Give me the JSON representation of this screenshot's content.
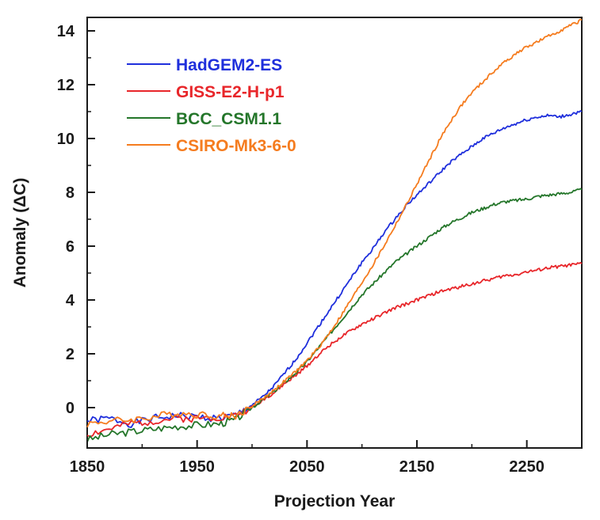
{
  "chart_data": {
    "type": "line",
    "xlabel": "Projection Year",
    "ylabel": "Anomaly (ΔC)",
    "xlim": [
      1850,
      2300
    ],
    "ylim": [
      -1.5,
      14.5
    ],
    "xticks": [
      1850,
      1950,
      2050,
      2150,
      2250
    ],
    "yticks": [
      0,
      2,
      4,
      6,
      8,
      10,
      12,
      14
    ],
    "grid": false,
    "legend_position": "top-left",
    "series": [
      {
        "name": "HadGEM2-ES",
        "color": "#1f2fdc",
        "x": [
          1850,
          1870,
          1890,
          1910,
          1930,
          1950,
          1970,
          1985,
          2000,
          2010,
          2020,
          2030,
          2040,
          2050,
          2060,
          2070,
          2080,
          2090,
          2100,
          2110,
          2120,
          2130,
          2140,
          2150,
          2160,
          2170,
          2180,
          2190,
          2200,
          2210,
          2220,
          2230,
          2240,
          2250,
          2260,
          2270,
          2280,
          2290,
          2300
        ],
        "y": [
          -0.5,
          -0.4,
          -0.6,
          -0.4,
          -0.3,
          -0.35,
          -0.4,
          -0.3,
          0.1,
          0.4,
          0.8,
          1.3,
          1.8,
          2.4,
          3.0,
          3.6,
          4.2,
          4.8,
          5.4,
          5.9,
          6.5,
          7.0,
          7.5,
          7.9,
          8.3,
          8.7,
          9.1,
          9.4,
          9.7,
          10.0,
          10.2,
          10.4,
          10.55,
          10.7,
          10.8,
          10.85,
          10.8,
          10.9,
          11.0
        ]
      },
      {
        "name": "GISS-E2-H-p1",
        "color": "#e8262a",
        "x": [
          1850,
          1870,
          1890,
          1910,
          1930,
          1950,
          1970,
          1985,
          2000,
          2010,
          2020,
          2030,
          2040,
          2050,
          2060,
          2070,
          2080,
          2090,
          2100,
          2110,
          2120,
          2130,
          2140,
          2150,
          2160,
          2170,
          2180,
          2190,
          2200,
          2210,
          2220,
          2230,
          2240,
          2250,
          2260,
          2270,
          2280,
          2290,
          2300
        ],
        "y": [
          -1.0,
          -0.8,
          -0.6,
          -0.5,
          -0.4,
          -0.4,
          -0.35,
          -0.3,
          0.0,
          0.3,
          0.55,
          0.9,
          1.2,
          1.55,
          1.95,
          2.3,
          2.6,
          2.85,
          3.1,
          3.3,
          3.5,
          3.7,
          3.85,
          4.0,
          4.15,
          4.3,
          4.4,
          4.5,
          4.6,
          4.7,
          4.8,
          4.9,
          4.95,
          5.05,
          5.1,
          5.2,
          5.25,
          5.3,
          5.35
        ]
      },
      {
        "name": "BCC_CSM1.1",
        "color": "#24762a",
        "x": [
          1850,
          1870,
          1890,
          1910,
          1930,
          1950,
          1970,
          1985,
          2000,
          2010,
          2020,
          2030,
          2040,
          2050,
          2060,
          2070,
          2080,
          2090,
          2100,
          2110,
          2120,
          2130,
          2140,
          2150,
          2160,
          2170,
          2180,
          2190,
          2200,
          2210,
          2220,
          2230,
          2240,
          2250,
          2260,
          2270,
          2280,
          2290,
          2300
        ],
        "y": [
          -1.2,
          -1.0,
          -0.9,
          -0.8,
          -0.7,
          -0.65,
          -0.6,
          -0.45,
          0.0,
          0.3,
          0.6,
          0.95,
          1.3,
          1.7,
          2.2,
          2.7,
          3.2,
          3.7,
          4.2,
          4.6,
          5.0,
          5.4,
          5.7,
          6.0,
          6.3,
          6.6,
          6.85,
          7.05,
          7.25,
          7.4,
          7.55,
          7.65,
          7.7,
          7.75,
          7.85,
          7.9,
          7.95,
          8.0,
          8.1
        ]
      },
      {
        "name": "CSIRO-Mk3-6-0",
        "color": "#f57c1f",
        "x": [
          1850,
          1870,
          1890,
          1910,
          1930,
          1950,
          1970,
          1985,
          2000,
          2010,
          2020,
          2030,
          2040,
          2050,
          2060,
          2070,
          2080,
          2090,
          2100,
          2110,
          2120,
          2130,
          2140,
          2150,
          2160,
          2170,
          2180,
          2190,
          2200,
          2210,
          2220,
          2230,
          2240,
          2250,
          2260,
          2270,
          2280,
          2290,
          2300
        ],
        "y": [
          -0.6,
          -0.5,
          -0.45,
          -0.35,
          -0.2,
          -0.25,
          -0.3,
          -0.3,
          0.05,
          0.35,
          0.65,
          1.0,
          1.35,
          1.75,
          2.2,
          2.75,
          3.35,
          4.0,
          4.65,
          5.3,
          6.0,
          6.75,
          7.5,
          8.3,
          9.1,
          9.9,
          10.6,
          11.2,
          11.7,
          12.1,
          12.5,
          12.85,
          13.15,
          13.4,
          13.6,
          13.8,
          14.0,
          14.2,
          14.4
        ]
      }
    ]
  }
}
